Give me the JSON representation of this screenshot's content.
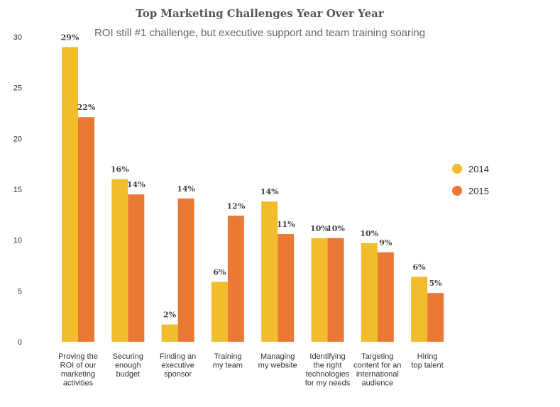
{
  "chart_data": {
    "type": "bar",
    "title": "Top Marketing Challenges Year Over Year",
    "subtitle": "ROI still #1 challenge, but executive support and team training soaring",
    "categories": [
      [
        "Proving the",
        "ROI of our",
        "marketing",
        "activities"
      ],
      [
        "Securing",
        "enough",
        "budget"
      ],
      [
        "Finding an",
        "executive",
        "sponsor"
      ],
      [
        "Training",
        "my team"
      ],
      [
        "Managing",
        "my website"
      ],
      [
        "Identifying",
        "the right",
        "technologies",
        "for my needs"
      ],
      [
        "Targeting",
        "content for an",
        "international",
        "audience"
      ],
      [
        "Hiring",
        "top talent"
      ]
    ],
    "series": [
      {
        "name": "2014",
        "color": "#f2bd2c",
        "values": [
          29,
          16,
          1.7,
          5.9,
          13.8,
          10.2,
          9.7,
          6.4
        ],
        "labels": [
          "29%",
          "16%",
          "2%",
          "6%",
          "14%",
          "10%",
          "10%",
          "6%"
        ]
      },
      {
        "name": "2015",
        "color": "#ea7936",
        "values": [
          22.1,
          14.5,
          14.1,
          12.4,
          10.6,
          10.2,
          8.8,
          4.8
        ],
        "labels": [
          "22%",
          "14%",
          "14%",
          "12%",
          "11%",
          "10%",
          "9%",
          "5%"
        ]
      }
    ],
    "yticks": [
      0,
      5,
      10,
      15,
      20,
      25,
      30
    ],
    "ylim": [
      0,
      30
    ],
    "grid": false,
    "legend": "right"
  }
}
